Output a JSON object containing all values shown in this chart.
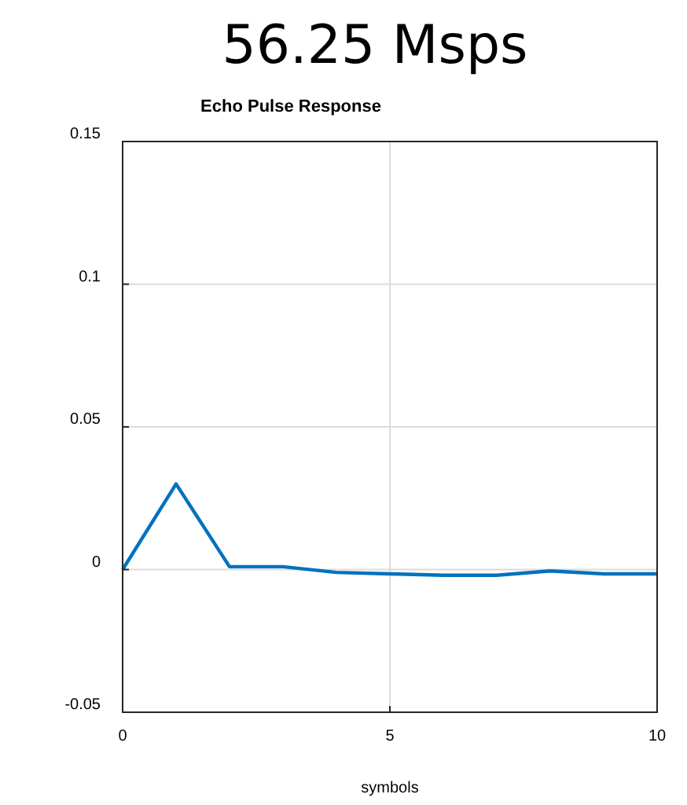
{
  "chart_data": {
    "type": "line",
    "title": "56.25 Msps",
    "subtitle": "Echo Pulse Response",
    "xlabel": "symbols",
    "x": [
      0,
      1,
      2,
      3,
      4,
      5,
      6,
      7,
      8,
      9,
      10
    ],
    "series": [
      {
        "color": "#0072bd",
        "values": [
          0,
          0.03,
          0.001,
          0.001,
          -0.001,
          -0.0015,
          -0.002,
          -0.002,
          -0.0005,
          -0.0015,
          -0.0015
        ]
      }
    ],
    "xlim": [
      0,
      10
    ],
    "xticks": [
      0,
      5,
      10
    ],
    "ylim": [
      -0.05,
      0.15
    ],
    "yticks": [
      -0.05,
      0,
      0.05,
      0.1,
      0.15
    ],
    "grid": true
  }
}
